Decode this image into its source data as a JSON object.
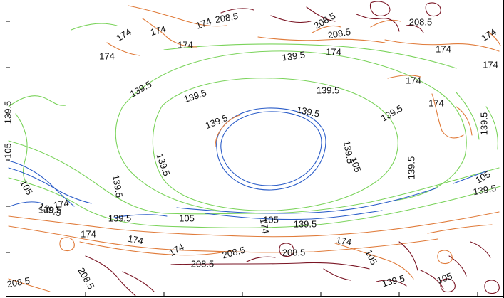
{
  "chart_data": {
    "type": "contour",
    "title": "",
    "xlabel": "",
    "ylabel": "",
    "levels": [
      {
        "value": 105,
        "color": "#2a5cc8"
      },
      {
        "value": 139.5,
        "color": "#7ad35a"
      },
      {
        "value": 174,
        "color": "#e07b3a"
      },
      {
        "value": 208.5,
        "color": "#7a1524"
      }
    ],
    "labels": [
      {
        "text": "174",
        "level": 174
      },
      {
        "text": "174",
        "level": 174
      },
      {
        "text": "174",
        "level": 174
      },
      {
        "text": "208.5",
        "level": 208.5
      },
      {
        "text": "174",
        "level": 174
      },
      {
        "text": "208.5",
        "level": 208.5
      },
      {
        "text": "208.5",
        "level": 208.5
      },
      {
        "text": "208.5",
        "level": 208.5
      },
      {
        "text": "174",
        "level": 174
      },
      {
        "text": "174",
        "level": 174
      },
      {
        "text": "174",
        "level": 174
      },
      {
        "text": "174",
        "level": 174
      },
      {
        "text": "139.5",
        "level": 139.5
      },
      {
        "text": "174",
        "level": 174
      },
      {
        "text": "174",
        "level": 174
      },
      {
        "text": "139.5",
        "level": 139.5
      },
      {
        "text": "139.5",
        "level": 139.5
      },
      {
        "text": "139.5",
        "level": 139.5
      },
      {
        "text": "174",
        "level": 174
      },
      {
        "text": "139.5",
        "level": 139.5
      },
      {
        "text": "139.5",
        "level": 139.5
      },
      {
        "text": "139.5",
        "level": 139.5
      },
      {
        "text": "139.5",
        "level": 139.5
      },
      {
        "text": "105",
        "level": 105
      },
      {
        "text": "139.5",
        "level": 139.5
      },
      {
        "text": "139.5",
        "level": 139.5
      },
      {
        "text": "139.5",
        "level": 139.5
      },
      {
        "text": "105",
        "level": 105
      },
      {
        "text": "139.5",
        "level": 139.5
      },
      {
        "text": "139.5",
        "level": 139.5
      },
      {
        "text": "105",
        "level": 105
      },
      {
        "text": "139.5",
        "level": 139.5
      },
      {
        "text": "105",
        "level": 105
      },
      {
        "text": "139.5",
        "level": 139.5
      },
      {
        "text": "174",
        "level": 174
      },
      {
        "text": "139.5",
        "level": 139.5
      },
      {
        "text": "139.5",
        "level": 139.5
      },
      {
        "text": "105",
        "level": 105
      },
      {
        "text": "105",
        "level": 105
      },
      {
        "text": "139.5",
        "level": 139.5
      },
      {
        "text": "174",
        "level": 174
      },
      {
        "text": "174",
        "level": 174
      },
      {
        "text": "174",
        "level": 174
      },
      {
        "text": "174",
        "level": 174
      },
      {
        "text": "208.5",
        "level": 208.5
      },
      {
        "text": "174",
        "level": 174
      },
      {
        "text": "208.5",
        "level": 208.5
      },
      {
        "text": "208.5",
        "level": 208.5
      },
      {
        "text": "208.5",
        "level": 208.5
      },
      {
        "text": "208.5",
        "level": 208.5
      },
      {
        "text": "105",
        "level": 105
      },
      {
        "text": "139.5",
        "level": 139.5
      },
      {
        "text": "105",
        "level": 105
      }
    ]
  }
}
